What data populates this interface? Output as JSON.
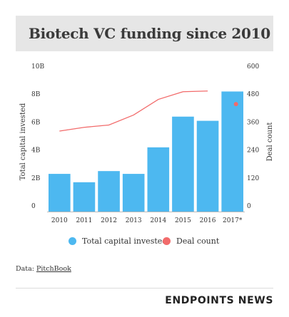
{
  "title": "Biotech VC funding since 2010",
  "legend": {
    "bars_label": "Total capital invested",
    "line_label": "Deal count"
  },
  "source": {
    "prefix": "Data: ",
    "link_text": "PitchBook"
  },
  "brand": "ENDPOINTS NEWS",
  "colors": {
    "bar": "#4db8f0",
    "line": "#f26b6b",
    "title_bg": "#e6e6e6"
  },
  "chart_data": {
    "type": "bar",
    "categories": [
      "2010",
      "2011",
      "2012",
      "2013",
      "2014",
      "2015",
      "2016",
      "2017*"
    ],
    "series": [
      {
        "name": "Total capital invested",
        "type": "bar",
        "axis": "left",
        "values": [
          2.7,
          2.1,
          2.9,
          2.7,
          4.6,
          6.8,
          6.5,
          8.6
        ]
      },
      {
        "name": "Deal count",
        "type": "line",
        "axis": "right",
        "values": [
          346,
          362,
          372,
          415,
          482,
          515,
          518,
          null
        ],
        "marker": {
          "category": "2017*",
          "value": 462
        }
      }
    ],
    "ylabel": "Total capital invested",
    "y2label": "Deal count",
    "ylim": [
      0,
      10
    ],
    "y2lim": [
      0,
      600
    ],
    "yticks": [
      "0",
      "2B",
      "4B",
      "6B",
      "8B",
      "10B"
    ],
    "y2ticks": [
      "0",
      "120",
      "240",
      "360",
      "480",
      "600"
    ],
    "grid": false,
    "legend_position": "bottom"
  }
}
